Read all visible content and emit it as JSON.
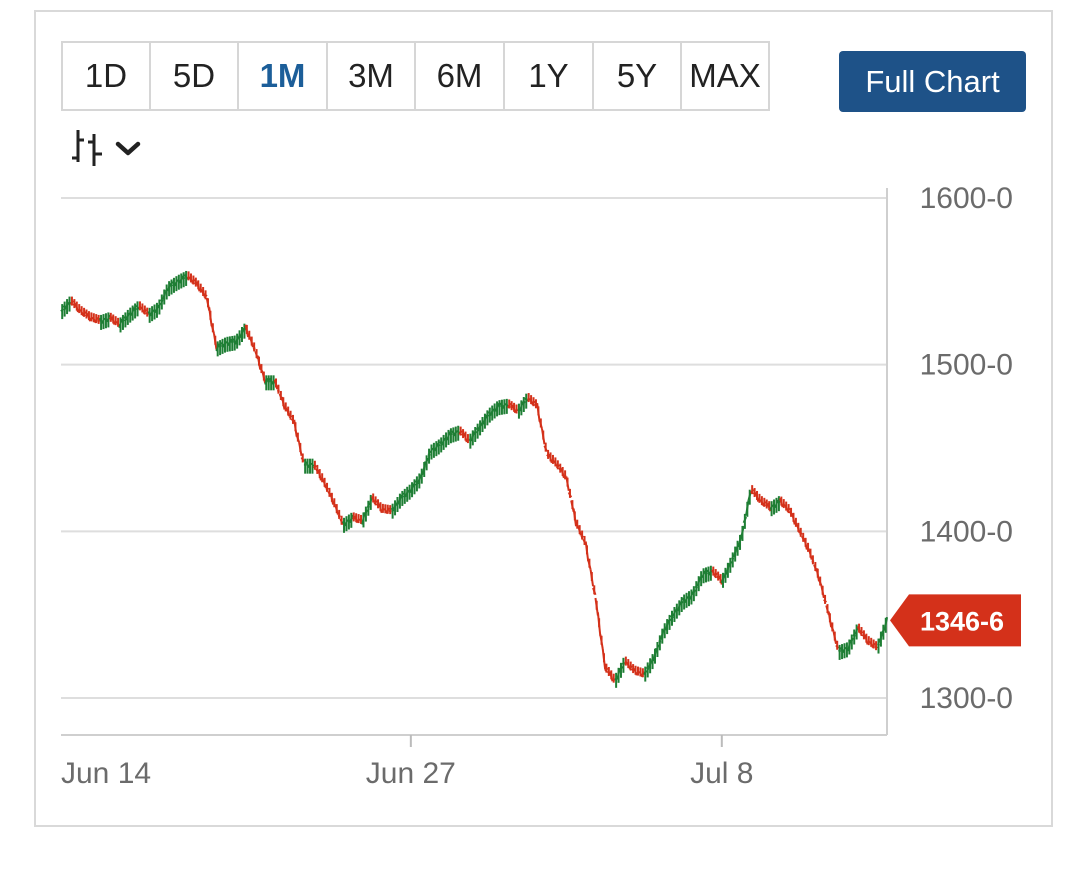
{
  "toolbar": {
    "ranges": [
      "1D",
      "5D",
      "1M",
      "3M",
      "6M",
      "1Y",
      "5Y",
      "MAX"
    ],
    "active_range": "1M",
    "full_chart_label": "Full Chart",
    "chart_type_icon": "candlestick-icon",
    "dropdown_icon": "chevron-down-icon"
  },
  "colors": {
    "up": "#1e7e34",
    "down": "#d4311a",
    "accent": "#1e5288",
    "active_range": "#1c5e99",
    "price_tag": "#d4311a",
    "grid": "#dedede"
  },
  "chart_data": {
    "type": "line",
    "series": [
      {
        "values": [
          [
            0,
            1532
          ],
          [
            0.5,
            1538
          ],
          [
            1,
            1532
          ],
          [
            1.5,
            1528
          ],
          [
            2,
            1526
          ],
          [
            2.5,
            1528
          ],
          [
            3,
            1524
          ],
          [
            3.5,
            1530
          ],
          [
            4,
            1535
          ],
          [
            4.5,
            1530
          ],
          [
            5,
            1534
          ],
          [
            5.5,
            1546
          ],
          [
            6,
            1550
          ],
          [
            6.5,
            1553
          ],
          [
            7,
            1548
          ],
          [
            7.5,
            1540
          ],
          [
            8,
            1510
          ],
          [
            8.5,
            1513
          ],
          [
            9,
            1514
          ],
          [
            9.5,
            1522
          ],
          [
            10,
            1508
          ],
          [
            10.5,
            1490
          ],
          [
            11,
            1490
          ],
          [
            11.5,
            1475
          ],
          [
            12,
            1465
          ],
          [
            12.5,
            1440
          ],
          [
            13,
            1440
          ],
          [
            13.5,
            1430
          ],
          [
            14,
            1418
          ],
          [
            14.5,
            1404
          ],
          [
            15,
            1408
          ],
          [
            15.5,
            1406
          ],
          [
            16,
            1420
          ],
          [
            16.5,
            1413
          ],
          [
            17,
            1412
          ],
          [
            17.5,
            1420
          ],
          [
            18,
            1425
          ],
          [
            18.5,
            1432
          ],
          [
            19,
            1448
          ],
          [
            19.5,
            1452
          ],
          [
            20,
            1458
          ],
          [
            20.5,
            1460
          ],
          [
            21,
            1454
          ],
          [
            21.5,
            1462
          ],
          [
            22,
            1470
          ],
          [
            22.5,
            1475
          ],
          [
            23,
            1476
          ],
          [
            23.5,
            1472
          ],
          [
            24,
            1480
          ],
          [
            24.5,
            1475
          ],
          [
            25,
            1446
          ],
          [
            25.5,
            1440
          ],
          [
            26,
            1432
          ],
          [
            26.5,
            1405
          ],
          [
            27,
            1392
          ],
          [
            27.5,
            1360
          ],
          [
            28,
            1318
          ],
          [
            28.5,
            1310
          ],
          [
            29,
            1322
          ],
          [
            29.5,
            1316
          ],
          [
            30,
            1314
          ],
          [
            30.5,
            1324
          ],
          [
            31,
            1340
          ],
          [
            31.5,
            1350
          ],
          [
            32,
            1358
          ],
          [
            32.5,
            1362
          ],
          [
            33,
            1374
          ],
          [
            33.5,
            1376
          ],
          [
            34,
            1370
          ],
          [
            34.5,
            1382
          ],
          [
            35,
            1396
          ],
          [
            35.5,
            1425
          ],
          [
            36,
            1418
          ],
          [
            36.5,
            1414
          ],
          [
            37,
            1418
          ],
          [
            37.5,
            1412
          ],
          [
            38,
            1400
          ],
          [
            38.5,
            1388
          ],
          [
            39,
            1372
          ],
          [
            39.5,
            1350
          ],
          [
            40,
            1328
          ],
          [
            40.5,
            1330
          ],
          [
            41,
            1342
          ],
          [
            41.5,
            1334
          ],
          [
            42,
            1330
          ],
          [
            42.5,
            1346.6
          ]
        ]
      }
    ],
    "x_ticks": [
      {
        "x": 0,
        "label": "Jun 14"
      },
      {
        "x": 18,
        "label": "Jun 27"
      },
      {
        "x": 34,
        "label": "Jul 8"
      }
    ],
    "y_ticks": [
      {
        "y": 1600,
        "label": "1600-0"
      },
      {
        "y": 1500,
        "label": "1500-0"
      },
      {
        "y": 1400,
        "label": "1400-0"
      },
      {
        "y": 1300,
        "label": "1300-0"
      }
    ],
    "xlim": [
      0,
      42.5
    ],
    "ylim": [
      1280,
      1600
    ],
    "last_price": 1346.6,
    "last_price_label": "1346-6",
    "grid": true
  }
}
